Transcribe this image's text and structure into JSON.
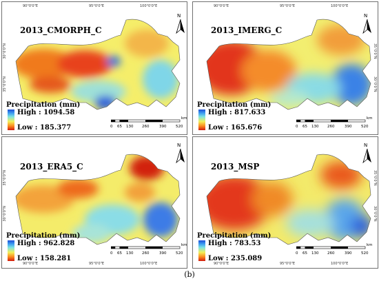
{
  "panels": [
    {
      "title": "2013_CMORPH_C",
      "legend_title": "Precipitation (mm)",
      "high": "High : 1094.58",
      "low": "Low : 185.377",
      "scale": {
        "labels": [
          "0",
          "65",
          "130",
          "260",
          "390",
          "520"
        ],
        "unit": "km"
      },
      "north": "N",
      "coords_top": [
        "90°0'0\"E",
        "95°0'0\"E",
        "100°0'0\"E"
      ],
      "coords_left": [
        "30°0'0\"N",
        "35°0'0\"N"
      ],
      "coords_right": [
        "35°0'0\"N",
        "30°0'0\"N"
      ]
    },
    {
      "title": "2013_IMERG_C",
      "legend_title": "Precipitation (mm)",
      "high": "High : 817.633",
      "low": "Low : 165.676",
      "scale": {
        "labels": [
          "0",
          "65",
          "130",
          "260",
          "390",
          "520"
        ],
        "unit": "km"
      },
      "north": "N",
      "coords_top": [
        "90°0'0\"E",
        "95°0'0\"E",
        "100°0'0\"E"
      ],
      "coords_left": [
        "30°0'0\"N",
        "35°0'0\"N"
      ],
      "coords_right": [
        "35°0'0\"N",
        "30°0'0\"N"
      ]
    },
    {
      "title": "2013_ERA5_C",
      "legend_title": "Precipitation (mm)",
      "high": "High : 962.828",
      "low": "Low : 158.281",
      "scale": {
        "labels": [
          "0",
          "65",
          "130",
          "260",
          "390",
          "520"
        ],
        "unit": "km"
      },
      "north": "N",
      "coords_top": [
        "90°0'0\"E",
        "95°0'0\"E",
        "100°0'0\"E"
      ],
      "coords_left": [
        "30°0'0\"N",
        "35°0'0\"N"
      ],
      "coords_right": [
        "35°0'0\"N",
        "30°0'0\"N"
      ]
    },
    {
      "title": "2013_MSP",
      "legend_title": "Precipitation (mm)",
      "high": "High : 783.53",
      "low": "Low : 235.089",
      "scale": {
        "labels": [
          "0",
          "65",
          "130",
          "260",
          "390",
          "520"
        ],
        "unit": "km"
      },
      "north": "N",
      "coords_top": [
        "90°0'0\"E",
        "95°0'0\"E",
        "100°0'0\"E"
      ],
      "coords_left": [
        "30°0'0\"N",
        "35°0'0\"N"
      ],
      "coords_right": [
        "35°0'0\"N",
        "30°0'0\"N"
      ]
    }
  ],
  "caption": "(b)",
  "colors": {
    "high": "#1d4fd6",
    "mid": "#f2f05a",
    "low": "#d11a0d"
  }
}
